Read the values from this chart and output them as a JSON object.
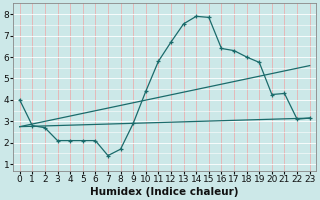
{
  "title": "",
  "xlabel": "Humidex (Indice chaleur)",
  "xlim": [
    -0.5,
    23.5
  ],
  "ylim": [
    0.7,
    8.5
  ],
  "xticks": [
    0,
    1,
    2,
    3,
    4,
    5,
    6,
    7,
    8,
    9,
    10,
    11,
    12,
    13,
    14,
    15,
    16,
    17,
    18,
    19,
    20,
    21,
    22,
    23
  ],
  "yticks": [
    1,
    2,
    3,
    4,
    5,
    6,
    7,
    8
  ],
  "bg_color": "#cce8e8",
  "line_color": "#1a6b6b",
  "line1_x": [
    0,
    1,
    2,
    3,
    4,
    5,
    6,
    7,
    8,
    9,
    10,
    11,
    12,
    13,
    14,
    15,
    16,
    17,
    18,
    19,
    20,
    21,
    22,
    23
  ],
  "line1_y": [
    4.0,
    2.8,
    2.7,
    2.1,
    2.1,
    2.1,
    2.1,
    1.4,
    1.7,
    2.9,
    4.4,
    5.8,
    6.7,
    7.55,
    7.9,
    7.85,
    6.4,
    6.3,
    6.0,
    5.75,
    4.25,
    4.3,
    3.1,
    3.15
  ],
  "line2_x": [
    0,
    23
  ],
  "line2_y": [
    2.75,
    5.6
  ],
  "line3_x": [
    0,
    23
  ],
  "line3_y": [
    2.75,
    3.15
  ],
  "hgrid_color": "#ffffff",
  "vgrid_color": "#e8b0b0",
  "tick_fontsize": 6.5
}
